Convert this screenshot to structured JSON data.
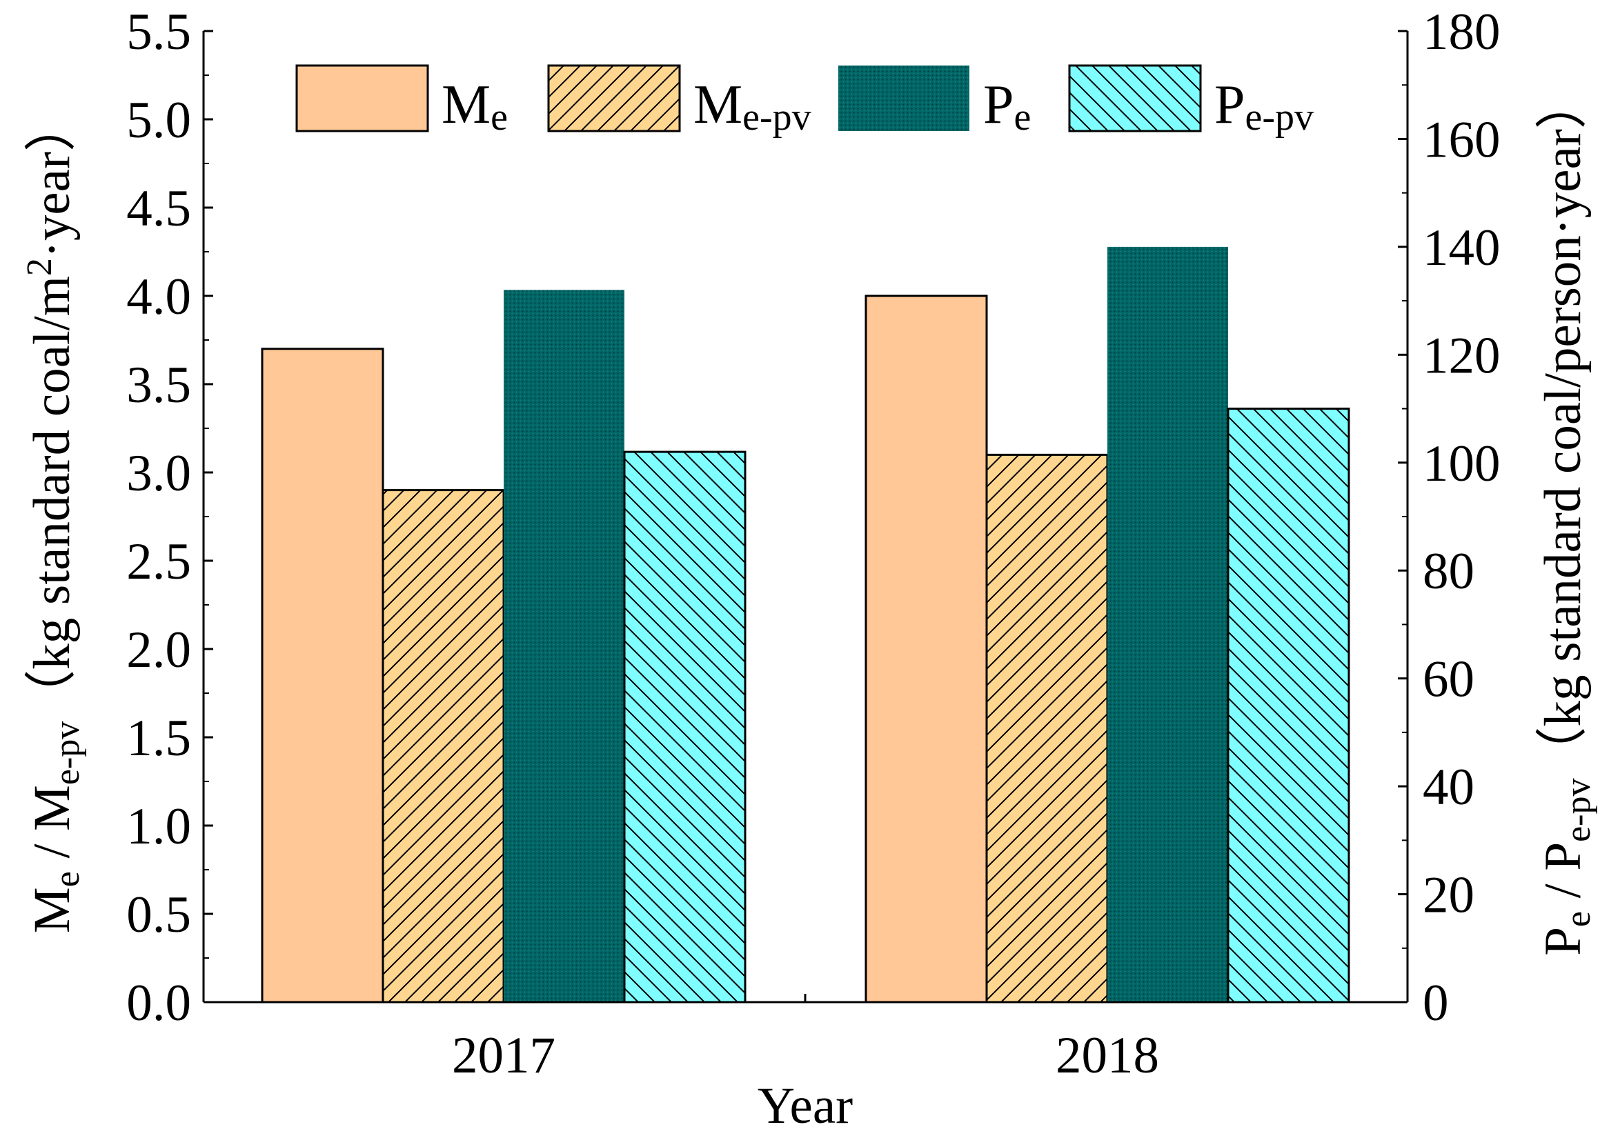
{
  "chart_data": {
    "type": "bar",
    "xlabel": "Year",
    "categories": [
      "2017",
      "2018"
    ],
    "left_axis": {
      "label_main": "M",
      "label_sub": "e",
      "label_sep": " / M",
      "label_sub2": "e-pv",
      "label_unit_pre": "（kg standard coal/m",
      "label_sup": "2",
      "label_unit_post": "·year）",
      "ylim": [
        0,
        5.5
      ],
      "ticks": [
        "0.0",
        "0.5",
        "1.0",
        "1.5",
        "2.0",
        "2.5",
        "3.0",
        "3.5",
        "4.0",
        "4.5",
        "5.0",
        "5.5"
      ]
    },
    "right_axis": {
      "label_main": "P",
      "label_sub": "e",
      "label_sep": " / P",
      "label_sub2": "e-pv",
      "label_unit": "（kg standard coal/person·year）",
      "ylim": [
        0,
        180
      ],
      "ticks": [
        "0",
        "20",
        "40",
        "60",
        "80",
        "100",
        "120",
        "140",
        "160",
        "180"
      ]
    },
    "series": [
      {
        "key": "me",
        "name": "M",
        "sub": "e",
        "axis": "left",
        "values": [
          3.7,
          4.0
        ],
        "color": "#FFC896",
        "pattern": "solid"
      },
      {
        "key": "mepv",
        "name": "M",
        "sub": "e-pv",
        "axis": "left",
        "values": [
          2.9,
          3.1
        ],
        "color": "#FFD68F",
        "pattern": "hatch-right"
      },
      {
        "key": "pe",
        "name": "P",
        "sub": "e",
        "axis": "right",
        "values": [
          132,
          140
        ],
        "color": "#006666",
        "pattern": "dots"
      },
      {
        "key": "pepv",
        "name": "P",
        "sub": "e-pv",
        "axis": "right",
        "values": [
          102,
          110
        ],
        "color": "#7FFFFF",
        "pattern": "hatch-left"
      }
    ],
    "legend_position": "top"
  }
}
